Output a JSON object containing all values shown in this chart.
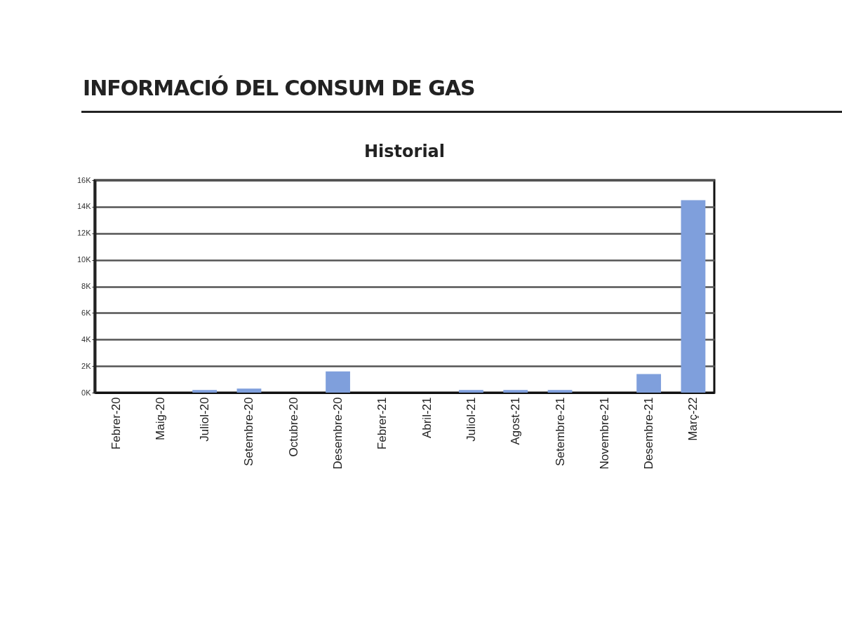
{
  "chart_data": {
    "type": "bar",
    "title": "INFORMACIÓ DEL CONSUM DE GAS",
    "subtitle": "Historial",
    "categories": [
      "Febrer-20",
      "Maig-20",
      "Juliol-20",
      "Setembre-20",
      "Octubre-20",
      "Desembre-20",
      "Febrer-21",
      "Abril-21",
      "Juliol-21",
      "Agost-21",
      "Setembre-21",
      "Novembre-21",
      "Desembre-21",
      "Març-22"
    ],
    "values": [
      0,
      0,
      200,
      300,
      0,
      1600,
      0,
      0,
      200,
      200,
      200,
      0,
      1400,
      14500
    ],
    "color": "#7f9fdc",
    "ylim": [
      0,
      16000
    ],
    "yticks": [
      {
        "value": 0,
        "label": "0K"
      },
      {
        "value": 2000,
        "label": "2K"
      },
      {
        "value": 4000,
        "label": "4K"
      },
      {
        "value": 6000,
        "label": "6K"
      },
      {
        "value": 8000,
        "label": "8K"
      },
      {
        "value": 10000,
        "label": "10K"
      },
      {
        "value": 12000,
        "label": "12K"
      },
      {
        "value": 14000,
        "label": "14K"
      },
      {
        "value": 16000,
        "label": "16K"
      }
    ],
    "grid": true
  }
}
